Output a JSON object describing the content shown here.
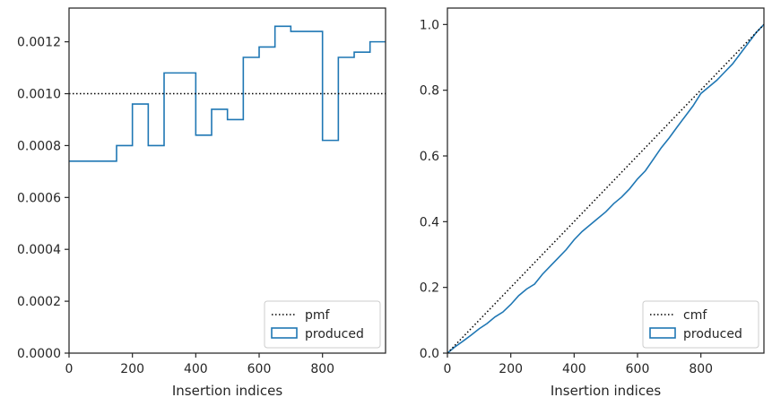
{
  "chart_data": [
    {
      "type": "step",
      "title": "",
      "xlabel": "Insertion indices",
      "ylabel": "",
      "xlim": [
        0,
        999
      ],
      "ylim": [
        0,
        0.00133
      ],
      "xticks": [
        0,
        200,
        400,
        600,
        800
      ],
      "xtick_labels": [
        "0",
        "200",
        "400",
        "600",
        "800"
      ],
      "yticks": [
        0,
        0.0002,
        0.0004,
        0.0006,
        0.0008,
        0.001,
        0.0012
      ],
      "ytick_labels": [
        "0.0000",
        "0.0002",
        "0.0004",
        "0.0006",
        "0.0008",
        "0.0010",
        "0.0012"
      ],
      "grid": false,
      "legend_position": "bottom-right",
      "series": [
        {
          "name": "produced",
          "style": "step",
          "color": "#1f77b4",
          "bin_edges": [
            0,
            50,
            100,
            150,
            200,
            250,
            300,
            350,
            400,
            450,
            500,
            550,
            600,
            650,
            700,
            750,
            800,
            850,
            900,
            950,
            999
          ],
          "values": [
            0.00074,
            0.00074,
            0.00074,
            0.0008,
            0.00096,
            0.0008,
            0.00108,
            0.00108,
            0.00084,
            0.00094,
            0.0009,
            0.00114,
            0.00118,
            0.00126,
            0.00124,
            0.00124,
            0.00082,
            0.00114,
            0.00116,
            0.0012
          ]
        },
        {
          "name": "pmf",
          "style": "dotted",
          "color": "#000000",
          "x": [
            0,
            999
          ],
          "y": [
            0.001,
            0.001
          ]
        }
      ]
    },
    {
      "type": "line",
      "title": "",
      "xlabel": "Insertion indices",
      "ylabel": "",
      "xlim": [
        0,
        999
      ],
      "ylim": [
        0,
        1.05
      ],
      "xticks": [
        0,
        200,
        400,
        600,
        800
      ],
      "xtick_labels": [
        "0",
        "200",
        "400",
        "600",
        "800"
      ],
      "yticks": [
        0,
        0.2,
        0.4,
        0.6,
        0.8,
        1.0
      ],
      "ytick_labels": [
        "0.0",
        "0.2",
        "0.4",
        "0.6",
        "0.8",
        "1.0"
      ],
      "grid": false,
      "legend_position": "bottom-right",
      "series": [
        {
          "name": "produced",
          "style": "line",
          "color": "#1f77b4",
          "x": [
            0,
            25,
            50,
            75,
            100,
            125,
            150,
            175,
            200,
            225,
            250,
            275,
            300,
            325,
            350,
            375,
            400,
            425,
            450,
            475,
            500,
            525,
            550,
            575,
            600,
            625,
            650,
            675,
            700,
            725,
            750,
            775,
            800,
            825,
            850,
            875,
            900,
            925,
            950,
            975,
            999
          ],
          "y": [
            0.0,
            0.02,
            0.037,
            0.055,
            0.074,
            0.09,
            0.11,
            0.125,
            0.148,
            0.175,
            0.195,
            0.21,
            0.24,
            0.265,
            0.29,
            0.315,
            0.345,
            0.37,
            0.39,
            0.41,
            0.43,
            0.455,
            0.475,
            0.5,
            0.53,
            0.555,
            0.59,
            0.625,
            0.655,
            0.688,
            0.72,
            0.752,
            0.79,
            0.81,
            0.83,
            0.855,
            0.88,
            0.912,
            0.944,
            0.976,
            1.0
          ]
        },
        {
          "name": "cmf",
          "style": "dotted",
          "color": "#000000",
          "x": [
            0,
            999
          ],
          "y": [
            0.0,
            1.0
          ]
        }
      ]
    }
  ]
}
